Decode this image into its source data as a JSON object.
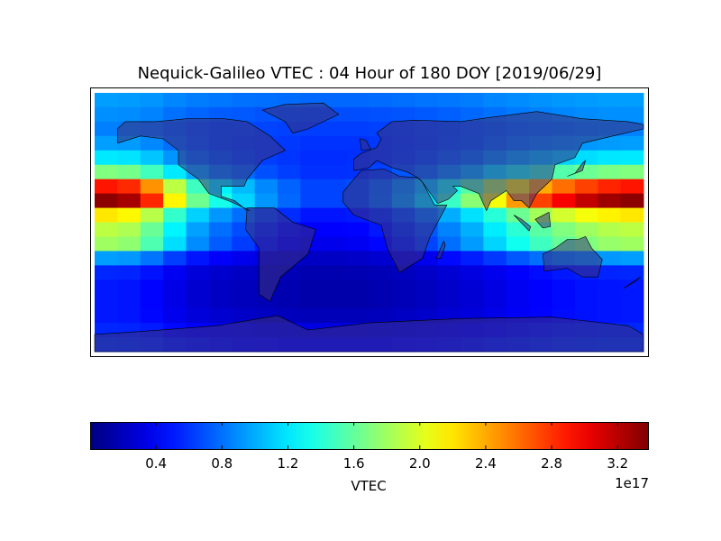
{
  "chart_data": {
    "type": "heatmap",
    "title": "Nequick-Galileo VTEC : 04 Hour of 180 DOY [2019/06/29]",
    "colormap": "jet",
    "lon_centers": [
      -172.5,
      -157.5,
      -142.5,
      -127.5,
      -112.5,
      -97.5,
      -82.5,
      -67.5,
      -52.5,
      -37.5,
      -22.5,
      -7.5,
      7.5,
      22.5,
      37.5,
      52.5,
      67.5,
      82.5,
      97.5,
      112.5,
      127.5,
      142.5,
      157.5,
      172.5
    ],
    "lat_centers": [
      85,
      75,
      65,
      55,
      45,
      35,
      25,
      15,
      5,
      -5,
      -15,
      -25,
      -35,
      -45,
      -55,
      -65,
      -75,
      -85
    ],
    "values_unit_multiplier": "1e17",
    "values": [
      [
        0.95,
        0.94,
        0.92,
        0.87,
        0.84,
        0.82,
        0.8,
        0.79,
        0.78,
        0.77,
        0.77,
        0.77,
        0.78,
        0.79,
        0.81,
        0.82,
        0.84,
        0.87,
        0.89,
        0.91,
        0.93,
        0.94,
        0.95,
        0.95
      ],
      [
        0.9,
        0.89,
        0.86,
        0.8,
        0.76,
        0.73,
        0.72,
        0.7,
        0.69,
        0.68,
        0.68,
        0.68,
        0.69,
        0.7,
        0.72,
        0.74,
        0.77,
        0.8,
        0.83,
        0.85,
        0.87,
        0.89,
        0.9,
        0.9
      ],
      [
        0.85,
        0.84,
        0.81,
        0.75,
        0.71,
        0.68,
        0.67,
        0.65,
        0.64,
        0.63,
        0.63,
        0.63,
        0.64,
        0.65,
        0.67,
        0.69,
        0.72,
        0.75,
        0.78,
        0.8,
        0.82,
        0.84,
        0.85,
        0.85
      ],
      [
        0.95,
        0.94,
        0.88,
        0.79,
        0.72,
        0.68,
        0.65,
        0.63,
        0.61,
        0.59,
        0.59,
        0.59,
        0.61,
        0.63,
        0.66,
        0.7,
        0.73,
        0.78,
        0.83,
        0.87,
        0.9,
        0.93,
        0.94,
        0.95
      ],
      [
        1.2,
        1.18,
        1.08,
        0.92,
        0.8,
        0.73,
        0.68,
        0.63,
        0.6,
        0.57,
        0.57,
        0.58,
        0.61,
        0.65,
        0.7,
        0.76,
        0.82,
        0.91,
        0.99,
        1.06,
        1.12,
        1.16,
        1.19,
        1.2
      ],
      [
        1.7,
        1.66,
        1.49,
        1.2,
        0.99,
        0.86,
        0.78,
        0.69,
        0.63,
        0.58,
        0.58,
        0.59,
        0.64,
        0.71,
        0.8,
        0.91,
        1.03,
        1.18,
        1.33,
        1.45,
        1.55,
        1.63,
        1.68,
        1.7
      ],
      [
        2.9,
        2.83,
        2.48,
        1.9,
        1.48,
        1.23,
        1.05,
        0.88,
        0.75,
        0.65,
        0.65,
        0.68,
        0.78,
        0.93,
        1.1,
        1.33,
        1.55,
        1.85,
        2.15,
        2.4,
        2.6,
        2.75,
        2.85,
        2.9
      ],
      [
        3.35,
        3.26,
        2.84,
        2.15,
        1.64,
        1.34,
        1.13,
        0.92,
        0.77,
        0.65,
        0.65,
        0.68,
        0.8,
        0.98,
        1.19,
        1.46,
        1.73,
        2.09,
        2.45,
        2.75,
        2.99,
        3.17,
        3.29,
        3.35
      ],
      [
        2.2,
        2.14,
        1.88,
        1.44,
        1.12,
        0.93,
        0.79,
        0.66,
        0.57,
        0.49,
        0.49,
        0.51,
        0.59,
        0.7,
        0.83,
        1.0,
        1.17,
        1.4,
        1.63,
        1.82,
        1.97,
        2.09,
        2.16,
        2.2
      ],
      [
        1.9,
        1.85,
        1.62,
        1.24,
        0.96,
        0.79,
        0.68,
        0.56,
        0.48,
        0.42,
        0.42,
        0.43,
        0.5,
        0.6,
        0.71,
        0.86,
        1.01,
        1.21,
        1.41,
        1.57,
        1.7,
        1.8,
        1.87,
        1.9
      ],
      [
        1.8,
        1.75,
        1.53,
        1.16,
        0.89,
        0.73,
        0.62,
        0.5,
        0.42,
        0.36,
        0.36,
        0.38,
        0.44,
        0.54,
        0.65,
        0.79,
        0.94,
        1.13,
        1.32,
        1.48,
        1.61,
        1.7,
        1.77,
        1.8
      ],
      [
        0.95,
        0.93,
        0.81,
        0.63,
        0.49,
        0.41,
        0.36,
        0.3,
        0.26,
        0.23,
        0.23,
        0.24,
        0.27,
        0.32,
        0.37,
        0.45,
        0.52,
        0.61,
        0.71,
        0.79,
        0.85,
        0.9,
        0.93,
        0.95
      ],
      [
        0.55,
        0.54,
        0.48,
        0.38,
        0.3,
        0.26,
        0.23,
        0.2,
        0.18,
        0.16,
        0.16,
        0.17,
        0.18,
        0.21,
        0.24,
        0.28,
        0.32,
        0.37,
        0.42,
        0.46,
        0.5,
        0.52,
        0.54,
        0.55
      ],
      [
        0.5,
        0.49,
        0.43,
        0.34,
        0.27,
        0.23,
        0.2,
        0.18,
        0.16,
        0.14,
        0.14,
        0.14,
        0.16,
        0.18,
        0.21,
        0.25,
        0.28,
        0.33,
        0.38,
        0.42,
        0.45,
        0.48,
        0.49,
        0.5
      ],
      [
        0.5,
        0.49,
        0.43,
        0.34,
        0.27,
        0.23,
        0.2,
        0.18,
        0.16,
        0.14,
        0.14,
        0.14,
        0.16,
        0.18,
        0.21,
        0.25,
        0.28,
        0.33,
        0.38,
        0.42,
        0.45,
        0.48,
        0.49,
        0.5
      ],
      [
        0.5,
        0.49,
        0.44,
        0.36,
        0.3,
        0.27,
        0.24,
        0.22,
        0.2,
        0.19,
        0.19,
        0.19,
        0.2,
        0.22,
        0.25,
        0.28,
        0.31,
        0.35,
        0.4,
        0.43,
        0.46,
        0.48,
        0.49,
        0.5
      ],
      [
        0.55,
        0.54,
        0.51,
        0.45,
        0.41,
        0.38,
        0.37,
        0.35,
        0.34,
        0.33,
        0.33,
        0.33,
        0.34,
        0.35,
        0.37,
        0.39,
        0.42,
        0.45,
        0.48,
        0.5,
        0.52,
        0.54,
        0.55,
        0.55
      ],
      [
        0.6,
        0.59,
        0.57,
        0.52,
        0.49,
        0.47,
        0.45,
        0.44,
        0.43,
        0.42,
        0.42,
        0.42,
        0.43,
        0.44,
        0.46,
        0.47,
        0.49,
        0.52,
        0.54,
        0.56,
        0.58,
        0.59,
        0.6,
        0.6
      ]
    ],
    "lon_range": [
      -180,
      180
    ],
    "lat_range": [
      -90,
      90
    ],
    "colorbar": {
      "label": "VTEC",
      "range": [
        0.0,
        3.39
      ],
      "ticks": [
        0.4,
        0.8,
        1.2,
        1.6,
        2.0,
        2.4,
        2.8,
        3.2
      ],
      "tick_labels": [
        "0.4",
        "0.8",
        "1.2",
        "1.6",
        "2.0",
        "2.4",
        "2.8",
        "3.2"
      ],
      "offset_text": "1e17",
      "orientation": "horizontal",
      "placement": "bottom"
    },
    "overlay": "coastlines and country borders"
  }
}
